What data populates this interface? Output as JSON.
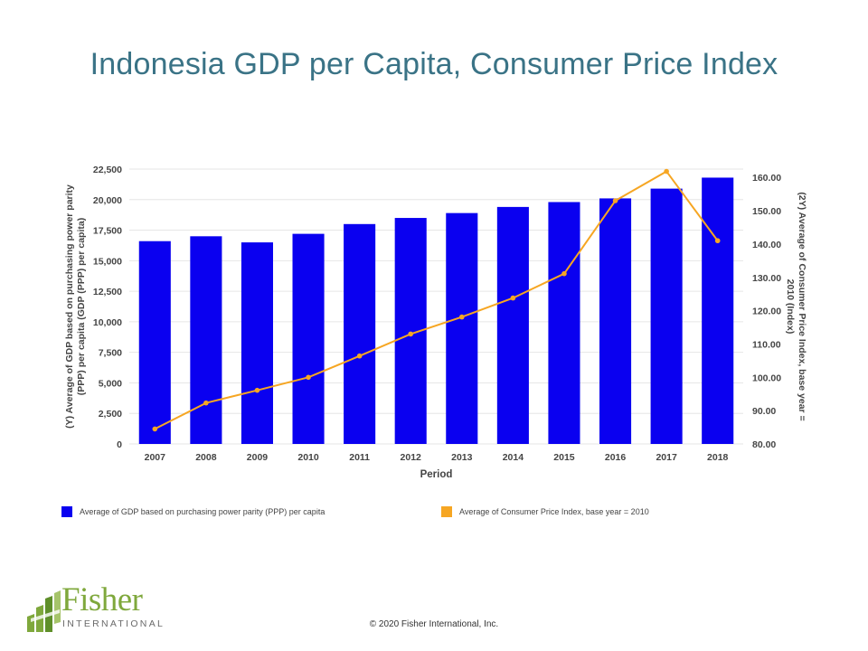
{
  "slide": {
    "title": "Indonesia GDP per Capita, Consumer Price Index",
    "footer": "© 2020 Fisher International,  Inc."
  },
  "logo": {
    "name": "Fisher",
    "sub": "INTERNATIONAL"
  },
  "chart_data": {
    "type": "bar",
    "xlabel": "Period",
    "categories": [
      "2007",
      "2008",
      "2009",
      "2010",
      "2011",
      "2012",
      "2013",
      "2014",
      "2015",
      "2016",
      "2017",
      "2018"
    ],
    "y_left": {
      "label_lines": [
        "(Y) Average of GDP based on purchasing power parity",
        "(PPP) per capita (GDP (PPP) per capita)"
      ],
      "ylim": [
        0,
        22500
      ],
      "ticks": [
        0,
        2500,
        5000,
        7500,
        10000,
        12500,
        15000,
        17500,
        20000,
        22500
      ],
      "tick_labels": [
        "0",
        "2,500",
        "5,000",
        "7,500",
        "10,000",
        "12,500",
        "15,000",
        "17,500",
        "20,000",
        "22,500"
      ]
    },
    "y_right": {
      "label_lines": [
        "(2Y) Average of Consumer Price Index, base year =",
        "2010 (Index)"
      ],
      "ylim": [
        80,
        162.5
      ],
      "ticks": [
        80,
        90,
        100,
        110,
        120,
        130,
        140,
        150,
        160
      ],
      "tick_labels": [
        "80.00",
        "90.00",
        "100.00",
        "110.00",
        "120.00",
        "130.00",
        "140.00",
        "150.00",
        "160.00"
      ]
    },
    "series": [
      {
        "name": "Average of GDP based on purchasing power parity (PPP) per capita",
        "type": "bar",
        "axis": "left",
        "color": "#0a00f0",
        "values": [
          16600,
          17000,
          16500,
          17200,
          18000,
          18500,
          18900,
          19400,
          19800,
          20100,
          20900,
          21800
        ]
      },
      {
        "name": "Average of Consumer Price Index, base year = 2010",
        "type": "line",
        "axis": "right",
        "color": "#f6a623",
        "values": [
          84.5,
          92.3,
          96.1,
          100.0,
          106.4,
          113.0,
          118.1,
          123.8,
          131.1,
          153.0,
          161.8,
          141.0
        ]
      }
    ],
    "grid": true,
    "legend_position": "bottom"
  },
  "colors": {
    "title": "#3a7386",
    "bar": "#0a00f0",
    "line": "#f6a623",
    "grid": "#e6e6e6",
    "axis_text": "#444444"
  }
}
